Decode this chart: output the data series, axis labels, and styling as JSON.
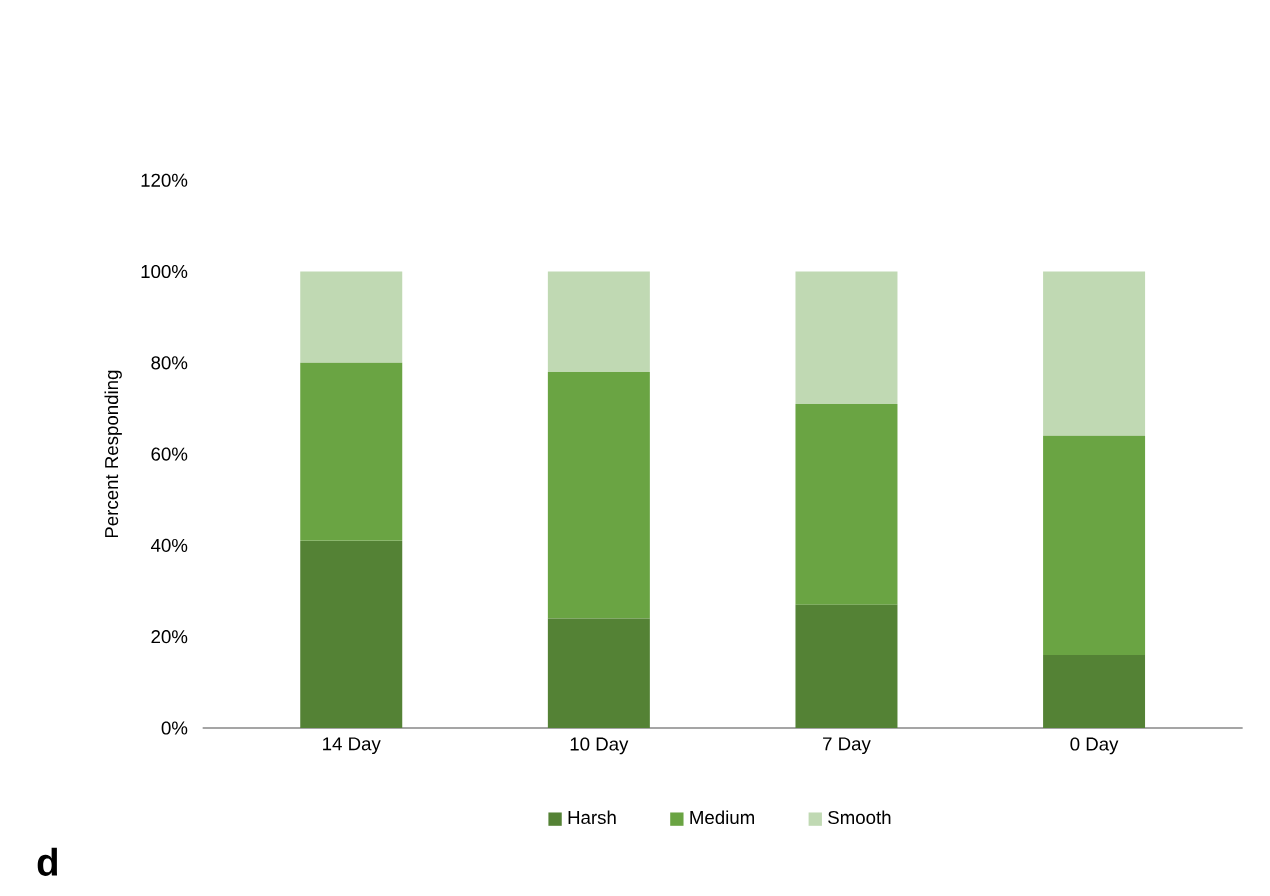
{
  "chart_data": {
    "type": "bar",
    "stacked": true,
    "ylabel": "Percent Responding",
    "categories": [
      "14 Day",
      "10 Day",
      "7 Day",
      "0 Day"
    ],
    "series": [
      {
        "name": "Harsh",
        "color": "#548235",
        "values": [
          41,
          24,
          27,
          16
        ]
      },
      {
        "name": "Medium",
        "color": "#6aa443",
        "values": [
          39,
          54,
          44,
          48
        ]
      },
      {
        "name": "Smooth",
        "color": "#c0d9b3",
        "values": [
          20,
          22,
          29,
          36
        ]
      }
    ],
    "ylim": [
      0,
      120
    ],
    "yticks": [
      {
        "value": 0,
        "label": "0%"
      },
      {
        "value": 20,
        "label": "20%"
      },
      {
        "value": 40,
        "label": "40%"
      },
      {
        "value": 60,
        "label": "60%"
      },
      {
        "value": 80,
        "label": "80%"
      },
      {
        "value": 100,
        "label": "100%"
      },
      {
        "value": 120,
        "label": "120%"
      }
    ],
    "grid": false,
    "legend": "bottom",
    "annotations": [
      "d"
    ]
  }
}
